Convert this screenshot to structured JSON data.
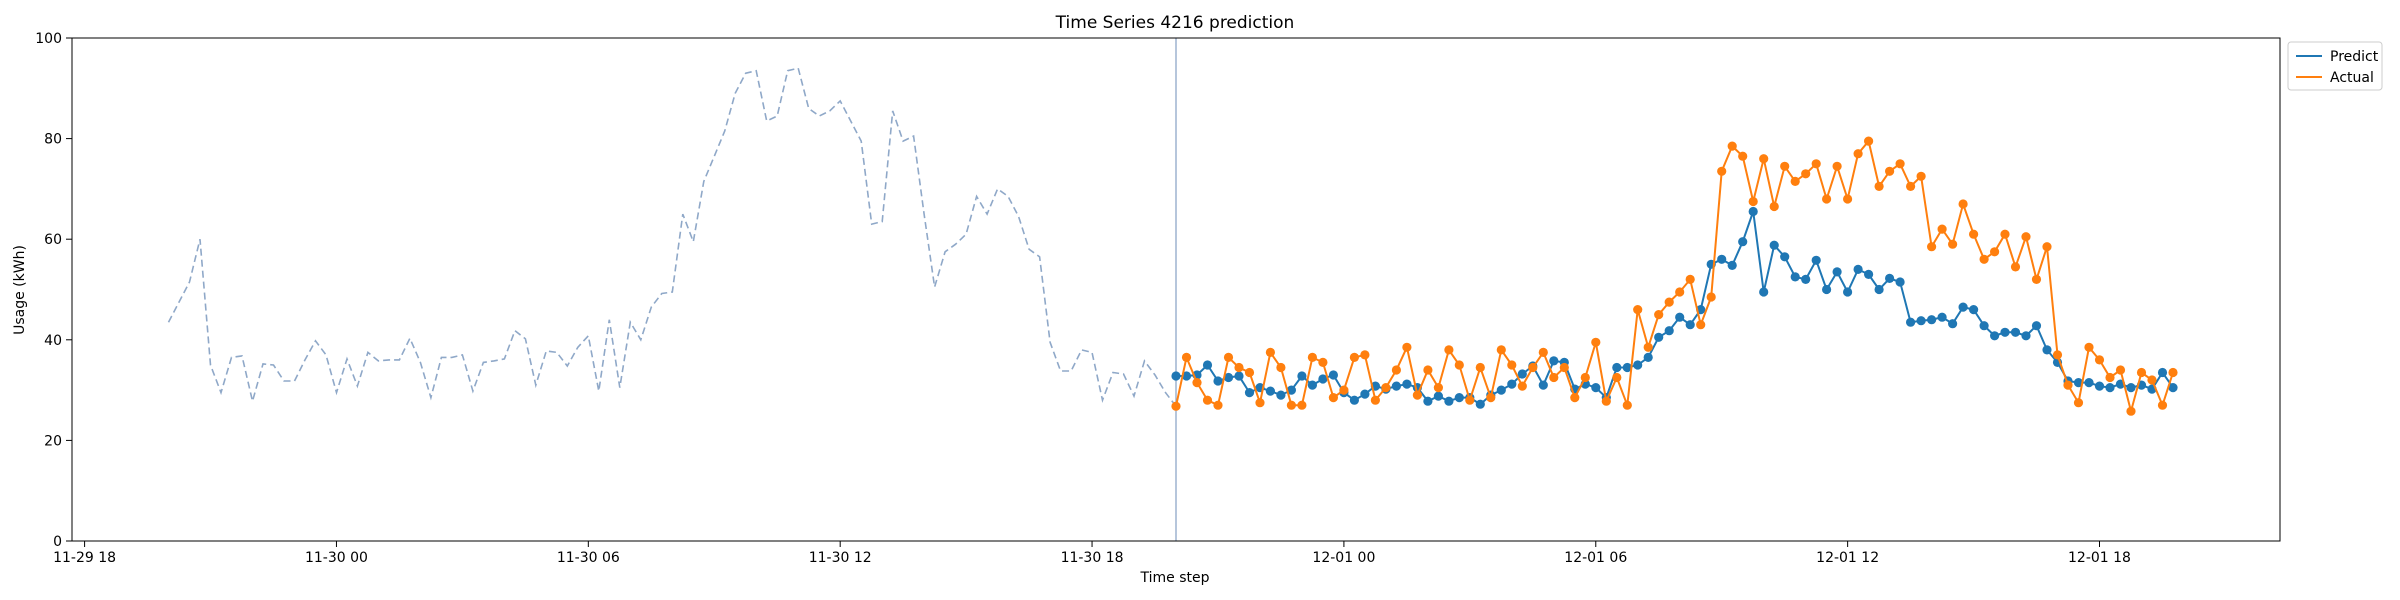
{
  "chart_data": {
    "type": "line",
    "title": "Time Series 4216 prediction",
    "xlabel": "Time step",
    "ylabel": "Usage (kWh)",
    "ylim": [
      0,
      100
    ],
    "xlim_hours": [
      -6.3,
      46.3
    ],
    "yticks": [
      0,
      20,
      40,
      60,
      80,
      100
    ],
    "xticks": [
      {
        "label": "11-29 18",
        "hour": -6
      },
      {
        "label": "11-30 00",
        "hour": 0
      },
      {
        "label": "11-30 06",
        "hour": 6
      },
      {
        "label": "11-30 12",
        "hour": 12
      },
      {
        "label": "11-30 18",
        "hour": 18
      },
      {
        "label": "12-01 00",
        "hour": 24
      },
      {
        "label": "12-01 06",
        "hour": 30
      },
      {
        "label": "12-01 12",
        "hour": 36
      },
      {
        "label": "12-01 18",
        "hour": 42
      }
    ],
    "grid": false,
    "legend_position": "upper-right-outside",
    "divider_hour": 20.0,
    "step_hours": 0.25,
    "history": {
      "start_hour": -4.0,
      "color": "#8fa8c8",
      "values": [
        43.5,
        47.5,
        51.5,
        60.0,
        35.0,
        29.5,
        36.5,
        36.8,
        27.8,
        35.2,
        35.0,
        31.8,
        31.8,
        36.0,
        39.8,
        37.0,
        29.5,
        36.2,
        30.8,
        37.5,
        35.8,
        36.0,
        36.0,
        40.3,
        35.5,
        28.5,
        36.5,
        36.5,
        37.0,
        29.8,
        35.5,
        35.8,
        36.2,
        41.8,
        40.2,
        31.0,
        37.8,
        37.5,
        34.8,
        38.5,
        40.8,
        29.8,
        44.0,
        30.5,
        43.5,
        40.0,
        46.5,
        49.2,
        49.5,
        65.0,
        59.5,
        71.5,
        76.5,
        81.5,
        89.0,
        93.0,
        93.5,
        83.5,
        84.5,
        93.5,
        94.0,
        86.0,
        84.5,
        85.5,
        87.5,
        83.5,
        79.5,
        63.0,
        63.5,
        85.5,
        79.5,
        80.5,
        65.0,
        50.5,
        57.5,
        59.0,
        61.0,
        68.5,
        65.0,
        70.0,
        68.5,
        64.5,
        58.0,
        56.5,
        39.5,
        33.8,
        33.8,
        38.0,
        37.5,
        28.0,
        33.5,
        33.2,
        28.8,
        35.8,
        33.0,
        29.5,
        26.8
      ]
    },
    "series": [
      {
        "name": "Predict",
        "color": "#1f77b4",
        "start_hour": 20.0,
        "values": [
          32.8,
          32.8,
          33.0,
          35.0,
          31.8,
          32.5,
          32.8,
          29.5,
          30.5,
          29.8,
          29.0,
          30.0,
          32.8,
          31.0,
          32.2,
          33.0,
          29.5,
          28.0,
          29.2,
          30.8,
          30.2,
          30.8,
          31.2,
          30.5,
          27.8,
          28.8,
          27.8,
          28.5,
          28.5,
          27.2,
          29.0,
          30.0,
          31.2,
          33.2,
          34.8,
          31.0,
          35.8,
          35.5,
          30.2,
          31.2,
          30.5,
          28.5,
          34.5,
          34.5,
          35.0,
          36.5,
          40.5,
          41.8,
          44.5,
          43.0,
          46.0,
          55.0,
          56.0,
          54.8,
          59.5,
          65.5,
          49.5,
          58.8,
          56.5,
          52.5,
          52.0,
          55.8,
          50.0,
          53.5,
          49.5,
          54.0,
          53.0,
          50.0,
          52.2,
          51.5,
          43.5,
          43.8,
          44.0,
          44.5,
          43.2,
          46.5,
          46.0,
          42.8,
          40.8,
          41.5,
          41.5,
          40.8,
          42.8,
          38.0,
          35.5,
          31.8,
          31.5,
          31.5,
          30.8,
          30.5,
          31.2,
          30.5,
          31.0,
          30.2,
          33.5,
          30.5
        ]
      },
      {
        "name": "Actual",
        "color": "#ff7f0e",
        "start_hour": 20.0,
        "values": [
          26.8,
          36.5,
          31.5,
          28.0,
          27.0,
          36.5,
          34.5,
          33.5,
          27.5,
          37.5,
          34.5,
          27.0,
          27.0,
          36.5,
          35.5,
          28.5,
          30.0,
          36.5,
          37.0,
          28.0,
          30.5,
          34.0,
          38.5,
          29.0,
          34.0,
          30.5,
          38.0,
          35.0,
          28.0,
          34.5,
          28.5,
          38.0,
          35.0,
          30.8,
          34.5,
          37.5,
          32.5,
          34.5,
          28.5,
          32.5,
          39.5,
          27.8,
          32.5,
          27.0,
          46.0,
          38.5,
          45.0,
          47.5,
          49.5,
          52.0,
          43.0,
          48.5,
          73.5,
          78.5,
          76.5,
          67.5,
          76.0,
          66.5,
          74.5,
          71.5,
          73.0,
          75.0,
          68.0,
          74.5,
          68.0,
          77.0,
          79.5,
          70.5,
          73.5,
          75.0,
          70.5,
          72.5,
          58.5,
          62.0,
          59.0,
          67.0,
          61.0,
          56.0,
          57.5,
          61.0,
          54.5,
          60.5,
          52.0,
          58.5,
          37.0,
          31.0,
          27.5,
          38.5,
          36.0,
          32.5,
          34.0,
          25.8,
          33.5,
          32.0,
          27.0,
          33.5
        ]
      }
    ]
  }
}
